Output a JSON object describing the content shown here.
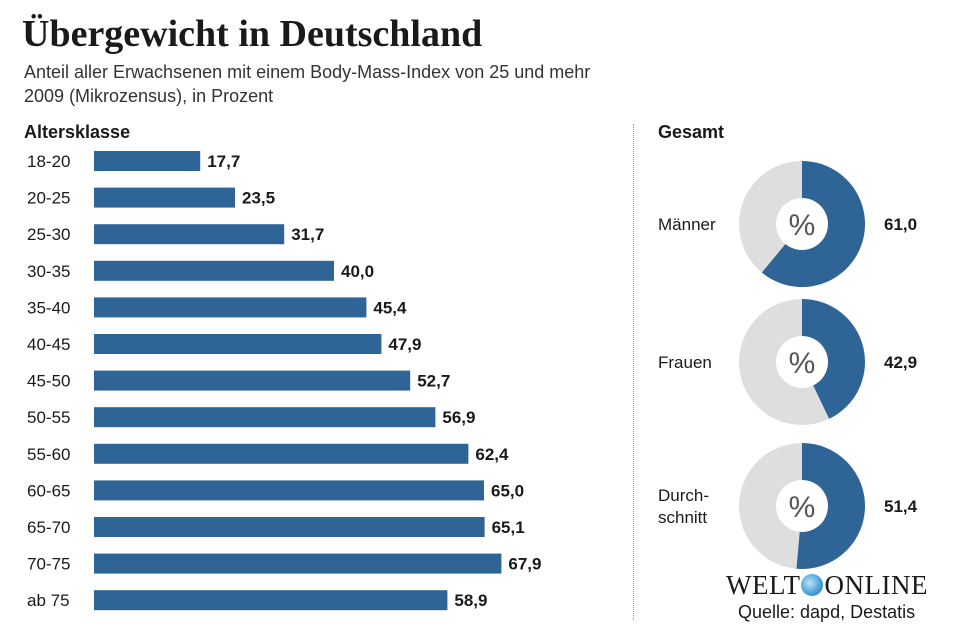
{
  "title": "Übergewicht in Deutschland",
  "subtitle_line1": "Anteil aller Erwachsenen mit einem Body-Mass-Index von 25 und mehr",
  "subtitle_line2": "2009 (Mikrozensus), in Prozent",
  "bar_section_label": "Altersklasse",
  "donut_section_label": "Gesamt",
  "logo_part1": "WELT",
  "logo_part2": "ONLINE",
  "source": "Quelle: dapd, Destatis",
  "colors": {
    "bar": "#2f6496",
    "donut_fill": "#2f6496",
    "donut_track": "#dedede",
    "text": "#1a1a1a"
  },
  "donut_center_symbol": "%",
  "chart_data": [
    {
      "type": "bar",
      "orientation": "horizontal",
      "categories": [
        "18-20",
        "20-25",
        "25-30",
        "30-35",
        "35-40",
        "40-45",
        "45-50",
        "50-55",
        "55-60",
        "60-65",
        "65-70",
        "70-75",
        "ab 75"
      ],
      "values": [
        17.7,
        23.5,
        31.7,
        40.0,
        45.4,
        47.9,
        52.7,
        56.9,
        62.4,
        65.0,
        65.1,
        67.9,
        58.9
      ],
      "value_labels": [
        "17,7",
        "23,5",
        "31,7",
        "40,0",
        "45,4",
        "47,9",
        "52,7",
        "56,9",
        "62,4",
        "65,0",
        "65,1",
        "67,9",
        "58,9"
      ],
      "xlim": [
        0,
        100
      ],
      "ylabel": "Altersklasse",
      "grid": false
    },
    {
      "type": "pie",
      "style": "donut",
      "categories": [
        "Männer",
        "Frauen",
        "Durch-schnitt"
      ],
      "label_lines": [
        [
          "Männer"
        ],
        [
          "Frauen"
        ],
        [
          "Durch-",
          "schnitt"
        ]
      ],
      "values": [
        61.0,
        42.9,
        51.4
      ],
      "value_labels": [
        "61,0",
        "42,9",
        "51,4"
      ],
      "max": 100
    }
  ]
}
